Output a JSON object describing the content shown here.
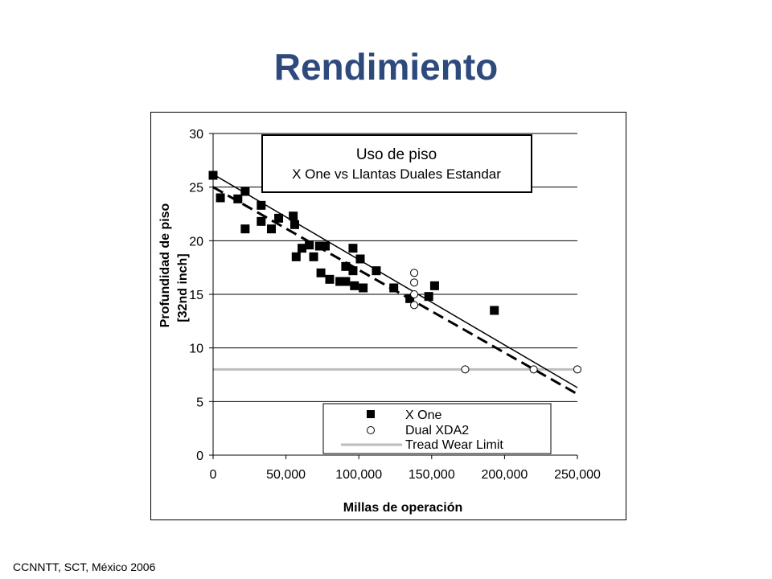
{
  "slide": {
    "title": "Rendimiento",
    "footer": "CCNNTT, SCT, México 2006"
  },
  "chart_data": {
    "type": "scatter",
    "title": "Uso de piso",
    "subtitle": "X One vs Llantas Duales Estandar",
    "xlabel": "Millas de operación",
    "ylabel": "Profundidad de piso",
    "ylabel_units": "[32nd inch]",
    "xlim": [
      0,
      250000
    ],
    "ylim": [
      0,
      30
    ],
    "x_ticks": [
      0,
      50000,
      100000,
      150000,
      200000,
      250000
    ],
    "x_tick_labels": [
      "0",
      "50,000",
      "100,000",
      "150,000",
      "200,000",
      "250,000"
    ],
    "y_ticks": [
      0,
      5,
      10,
      15,
      20,
      25,
      30
    ],
    "y_tick_labels": [
      "0",
      "5",
      "10",
      "15",
      "20",
      "25",
      "30"
    ],
    "grid": "horizontal",
    "legend": {
      "position": "bottom-right",
      "entries": [
        "X One",
        "Dual XDA2",
        "Tread Wear Limit"
      ]
    },
    "series": [
      {
        "name": "X One",
        "marker": "filled-square",
        "color": "#000000",
        "points": [
          [
            0,
            26.1
          ],
          [
            5000,
            24.0
          ],
          [
            17000,
            23.9
          ],
          [
            22000,
            24.6
          ],
          [
            22000,
            21.1
          ],
          [
            33000,
            23.3
          ],
          [
            33000,
            21.8
          ],
          [
            40000,
            21.1
          ],
          [
            45000,
            22.1
          ],
          [
            55000,
            22.3
          ],
          [
            56000,
            21.5
          ],
          [
            57000,
            18.5
          ],
          [
            61000,
            19.3
          ],
          [
            66000,
            19.6
          ],
          [
            69000,
            18.5
          ],
          [
            73000,
            19.5
          ],
          [
            74000,
            17.0
          ],
          [
            77000,
            19.5
          ],
          [
            80000,
            16.4
          ],
          [
            87000,
            16.2
          ],
          [
            91000,
            17.6
          ],
          [
            91000,
            16.2
          ],
          [
            96000,
            19.3
          ],
          [
            96000,
            17.2
          ],
          [
            97000,
            15.8
          ],
          [
            101000,
            18.3
          ],
          [
            103000,
            15.6
          ],
          [
            112000,
            17.2
          ],
          [
            124000,
            15.6
          ],
          [
            135000,
            14.6
          ],
          [
            148000,
            14.8
          ],
          [
            152000,
            15.8
          ],
          [
            193000,
            13.5
          ]
        ]
      },
      {
        "name": "Dual XDA2",
        "marker": "open-circle",
        "color": "#000000",
        "points": [
          [
            138000,
            17.0
          ],
          [
            138000,
            16.1
          ],
          [
            138000,
            15.0
          ],
          [
            138000,
            14.0
          ],
          [
            173000,
            8.0
          ],
          [
            220000,
            8.0
          ],
          [
            250000,
            8.0
          ]
        ]
      },
      {
        "name": "Tread Wear Limit",
        "type": "line",
        "color": "#bdbdbd",
        "points": [
          [
            0,
            8
          ],
          [
            250000,
            8
          ]
        ]
      }
    ],
    "trend_lines": [
      {
        "series": "X One",
        "style": "solid",
        "color": "#000000",
        "points": [
          [
            0,
            26.2
          ],
          [
            250000,
            6.3
          ]
        ]
      },
      {
        "series": "Dual XDA2",
        "style": "dashed",
        "color": "#000000",
        "points": [
          [
            0,
            25.0
          ],
          [
            250000,
            5.7
          ]
        ]
      }
    ]
  }
}
